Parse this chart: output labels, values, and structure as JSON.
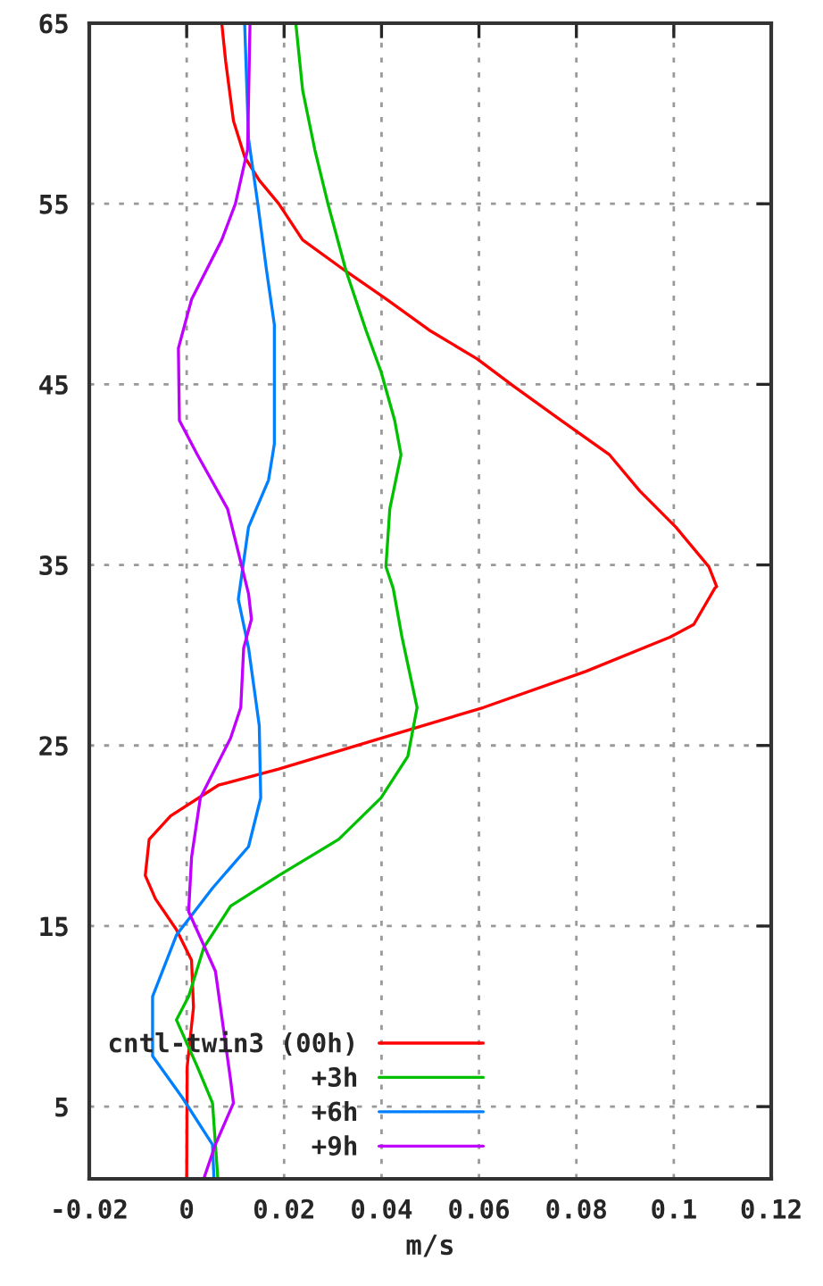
{
  "chart_data": {
    "type": "line",
    "xlabel": "m/s",
    "xlim": [
      -0.02,
      0.12
    ],
    "ylim": [
      1,
      65
    ],
    "xticks": [
      -0.02,
      0,
      0.02,
      0.04,
      0.06,
      0.08,
      0.1,
      0.12
    ],
    "yticks": [
      5,
      15,
      25,
      35,
      45,
      55,
      65
    ],
    "grid": true,
    "legend": "bottom left",
    "series": [
      {
        "name": "cntl-twin3 (00h)",
        "color": "#ff0000",
        "x": [
          0.0072,
          0.008,
          0.0096,
          0.0119,
          0.0149,
          0.0189,
          0.0238,
          0.0325,
          0.0411,
          0.0498,
          0.0597,
          0.0671,
          0.0769,
          0.0868,
          0.093,
          0.1004,
          0.1072,
          0.1088,
          0.1084,
          0.1041,
          0.0992,
          0.0819,
          0.0609,
          0.0399,
          0.0189,
          0.0065,
          -0.0033,
          -0.0077,
          -0.0085,
          -0.0064,
          -0.0021,
          0.001,
          0.0014,
          0.0001,
          0
        ],
        "values": [
          65,
          62.9,
          59.6,
          57.6,
          56.3,
          55,
          53,
          51.3,
          49.7,
          48,
          46.4,
          44.9,
          43,
          41.1,
          39.1,
          37.1,
          34.9,
          33.8,
          33.7,
          31.7,
          31,
          29.1,
          27.1,
          25.4,
          23.7,
          22.8,
          21.1,
          19.8,
          17.8,
          16.5,
          14.8,
          13.1,
          10.5,
          7.2,
          1
        ]
      },
      {
        "name": "+3h",
        "color": "#00c000",
        "x": [
          0.0224,
          0.0238,
          0.0263,
          0.029,
          0.0327,
          0.0368,
          0.0399,
          0.0427,
          0.044,
          0.0417,
          0.0409,
          0.0424,
          0.0442,
          0.0473,
          0.0454,
          0.0399,
          0.0312,
          0.0189,
          0.009,
          0.0035,
          0.0004,
          -0.0021,
          0.0022,
          0.0053,
          0.0064
        ],
        "values": [
          65,
          61.3,
          58,
          55,
          51.3,
          48,
          45.7,
          43,
          41.1,
          38.1,
          34.9,
          33.7,
          31,
          27.1,
          24.4,
          22.1,
          19.8,
          17.8,
          16.1,
          13.8,
          11.1,
          9.8,
          7.2,
          5.2,
          1
        ]
      },
      {
        "name": "+6h",
        "color": "#0080ff",
        "x": [
          0.0119,
          0.0127,
          0.0146,
          0.0164,
          0.018,
          0.018,
          0.0168,
          0.0127,
          0.0106,
          0.0127,
          0.0149,
          0.0152,
          0.0127,
          0.0053,
          -0.0021,
          -0.007,
          -0.007,
          -0.0009,
          0.0053,
          0.0056
        ],
        "values": [
          65,
          58.6,
          55,
          51.3,
          48.3,
          41.7,
          39.7,
          37.1,
          33.1,
          30.4,
          26.1,
          22.1,
          19.4,
          17.1,
          14.5,
          11.1,
          7.8,
          5.5,
          2.9,
          1
        ]
      },
      {
        "name": "+9h",
        "color": "#c000ff",
        "x": [
          0.013,
          0.0125,
          0.01,
          0.0072,
          0.001,
          -0.0017,
          -0.0015,
          0.0022,
          0.0084,
          0.0106,
          0.0127,
          0.0133,
          0.0117,
          0.0111,
          0.009,
          0.0028,
          0.001,
          0.0004,
          0.0059,
          0.009,
          0.0096,
          0.0059,
          0.0035
        ],
        "values": [
          65,
          58,
          55,
          53,
          49.7,
          47,
          43,
          41.1,
          38.1,
          35.7,
          33.4,
          32,
          30.4,
          27.1,
          25.4,
          22.1,
          18.8,
          15.8,
          12.5,
          6.5,
          5.2,
          2.9,
          1
        ]
      }
    ]
  }
}
